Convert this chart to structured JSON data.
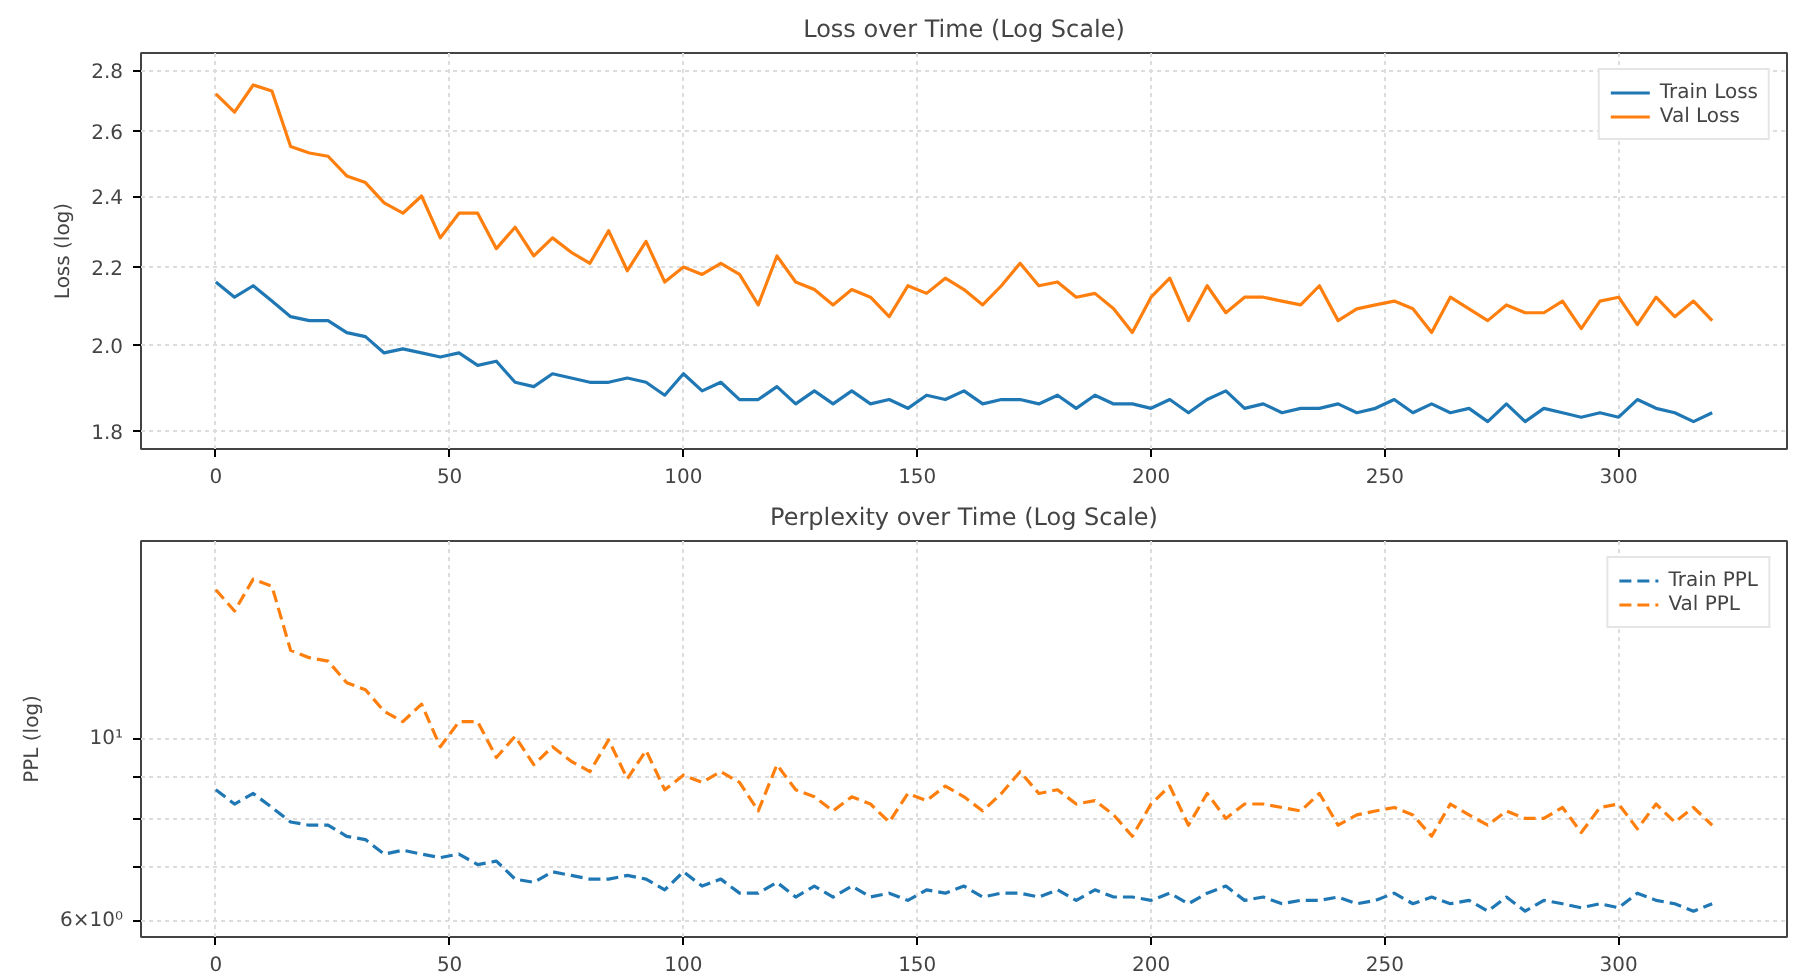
{
  "chart_data": [
    {
      "type": "line",
      "title": "Loss over Time (Log Scale)",
      "ylabel": "Loss (log)",
      "log": "y",
      "grid": true,
      "legend": "top right",
      "line_style": "solid",
      "xlim": [
        -16,
        336
      ],
      "xticks": [
        0,
        50,
        100,
        150,
        200,
        250,
        300
      ],
      "ylim": [
        1.76,
        2.86
      ],
      "yticks": [
        1.8,
        {
          "value": 2,
          "label": "2.0"
        },
        2.2,
        2.4,
        2.6,
        2.8
      ],
      "x": [
        0,
        4,
        8,
        12,
        16,
        20,
        24,
        28,
        32,
        36,
        40,
        44,
        48,
        52,
        56,
        60,
        64,
        68,
        72,
        76,
        80,
        84,
        88,
        92,
        96,
        100,
        104,
        108,
        112,
        116,
        120,
        124,
        128,
        132,
        136,
        140,
        144,
        148,
        152,
        156,
        160,
        164,
        168,
        172,
        176,
        180,
        184,
        188,
        192,
        196,
        200,
        204,
        208,
        212,
        216,
        220,
        224,
        228,
        232,
        236,
        240,
        244,
        248,
        252,
        256,
        260,
        264,
        268,
        272,
        276,
        280,
        284,
        288,
        292,
        296,
        300,
        304,
        308,
        312,
        316,
        320
      ],
      "series": [
        {
          "name": "Train Loss",
          "color": "#1f77b4",
          "values": [
            2.16,
            2.12,
            2.15,
            2.11,
            2.07,
            2.06,
            2.06,
            2.03,
            2.02,
            1.98,
            1.99,
            1.98,
            1.97,
            1.98,
            1.95,
            1.96,
            1.91,
            1.9,
            1.93,
            1.92,
            1.91,
            1.91,
            1.92,
            1.91,
            1.88,
            1.93,
            1.89,
            1.91,
            1.87,
            1.87,
            1.9,
            1.86,
            1.89,
            1.86,
            1.89,
            1.86,
            1.87,
            1.85,
            1.88,
            1.87,
            1.89,
            1.86,
            1.87,
            1.87,
            1.86,
            1.88,
            1.85,
            1.88,
            1.86,
            1.86,
            1.85,
            1.87,
            1.84,
            1.87,
            1.89,
            1.85,
            1.86,
            1.84,
            1.85,
            1.85,
            1.86,
            1.84,
            1.85,
            1.87,
            1.84,
            1.86,
            1.84,
            1.85,
            1.82,
            1.86,
            1.82,
            1.85,
            1.84,
            1.83,
            1.84,
            1.83,
            1.87,
            1.85,
            1.84,
            1.82,
            1.84
          ]
        },
        {
          "name": "Val Loss",
          "color": "#ff7f0e",
          "values": [
            2.72,
            2.66,
            2.75,
            2.73,
            2.55,
            2.53,
            2.52,
            2.46,
            2.44,
            2.38,
            2.35,
            2.4,
            2.28,
            2.35,
            2.35,
            2.25,
            2.31,
            2.23,
            2.28,
            2.24,
            2.21,
            2.3,
            2.19,
            2.27,
            2.16,
            2.2,
            2.18,
            2.21,
            2.18,
            2.1,
            2.23,
            2.16,
            2.14,
            2.1,
            2.14,
            2.12,
            2.07,
            2.15,
            2.13,
            2.17,
            2.14,
            2.1,
            2.15,
            2.21,
            2.15,
            2.16,
            2.12,
            2.13,
            2.09,
            2.03,
            2.12,
            2.17,
            2.06,
            2.15,
            2.08,
            2.12,
            2.12,
            2.11,
            2.1,
            2.15,
            2.06,
            2.09,
            2.1,
            2.11,
            2.09,
            2.03,
            2.12,
            2.09,
            2.06,
            2.1,
            2.08,
            2.08,
            2.11,
            2.04,
            2.11,
            2.12,
            2.05,
            2.12,
            2.07,
            2.11,
            2.06
          ]
        }
      ]
    },
    {
      "type": "line",
      "title": "Perplexity over Time (Log Scale)",
      "ylabel": "PPL (log)",
      "log": "y",
      "grid": true,
      "legend": "top right",
      "line_style": "dashed",
      "xlim": [
        -16,
        336
      ],
      "xticks": [
        0,
        50,
        100,
        150,
        200,
        250,
        300
      ],
      "ylim": [
        5.74,
        17.4
      ],
      "yticks": [
        {
          "value": 6,
          "label": "6×10⁰"
        },
        {
          "value": 7,
          "label": null
        },
        {
          "value": 8,
          "label": null
        },
        {
          "value": 9,
          "label": null
        },
        {
          "value": 10,
          "label": "10¹"
        }
      ],
      "x": [
        0,
        4,
        8,
        12,
        16,
        20,
        24,
        28,
        32,
        36,
        40,
        44,
        48,
        52,
        56,
        60,
        64,
        68,
        72,
        76,
        80,
        84,
        88,
        92,
        96,
        100,
        104,
        108,
        112,
        116,
        120,
        124,
        128,
        132,
        136,
        140,
        144,
        148,
        152,
        156,
        160,
        164,
        168,
        172,
        176,
        180,
        184,
        188,
        192,
        196,
        200,
        204,
        208,
        212,
        216,
        220,
        224,
        228,
        232,
        236,
        240,
        244,
        248,
        252,
        256,
        260,
        264,
        268,
        272,
        276,
        280,
        284,
        288,
        292,
        296,
        300,
        304,
        308,
        312,
        316,
        320
      ],
      "series": [
        {
          "name": "Train PPL",
          "color": "#1f77b4",
          "values": [
            8.67,
            8.33,
            8.58,
            8.25,
            7.92,
            7.85,
            7.85,
            7.61,
            7.54,
            7.24,
            7.32,
            7.24,
            7.17,
            7.24,
            7.03,
            7.1,
            6.75,
            6.69,
            6.89,
            6.82,
            6.75,
            6.75,
            6.82,
            6.75,
            6.55,
            6.89,
            6.62,
            6.75,
            6.49,
            6.49,
            6.69,
            6.42,
            6.62,
            6.42,
            6.62,
            6.42,
            6.49,
            6.36,
            6.55,
            6.49,
            6.62,
            6.42,
            6.49,
            6.49,
            6.42,
            6.55,
            6.36,
            6.55,
            6.42,
            6.42,
            6.36,
            6.49,
            6.3,
            6.49,
            6.62,
            6.36,
            6.42,
            6.3,
            6.36,
            6.36,
            6.42,
            6.3,
            6.36,
            6.49,
            6.3,
            6.42,
            6.3,
            6.36,
            6.17,
            6.42,
            6.17,
            6.36,
            6.3,
            6.23,
            6.3,
            6.23,
            6.49,
            6.36,
            6.3,
            6.17,
            6.3
          ]
        },
        {
          "name": "Val PPL",
          "color": "#ff7f0e",
          "values": [
            15.18,
            14.3,
            15.64,
            15.33,
            12.81,
            12.55,
            12.43,
            11.7,
            11.47,
            10.8,
            10.49,
            11.02,
            9.78,
            10.49,
            10.49,
            9.49,
            10.07,
            9.3,
            9.78,
            9.39,
            9.12,
            9.97,
            8.94,
            9.68,
            8.67,
            9.03,
            8.85,
            9.12,
            8.85,
            8.17,
            9.3,
            8.67,
            8.5,
            8.17,
            8.5,
            8.33,
            7.92,
            8.58,
            8.41,
            8.76,
            8.5,
            8.17,
            8.58,
            9.12,
            8.58,
            8.67,
            8.33,
            8.41,
            8.08,
            7.61,
            8.33,
            8.76,
            7.85,
            8.58,
            8.0,
            8.33,
            8.33,
            8.25,
            8.17,
            8.58,
            7.85,
            8.08,
            8.17,
            8.25,
            8.08,
            7.61,
            8.33,
            8.08,
            7.85,
            8.17,
            8.0,
            8.0,
            8.25,
            7.69,
            8.25,
            8.33,
            7.77,
            8.33,
            7.92,
            8.25,
            7.85
          ]
        }
      ]
    }
  ]
}
